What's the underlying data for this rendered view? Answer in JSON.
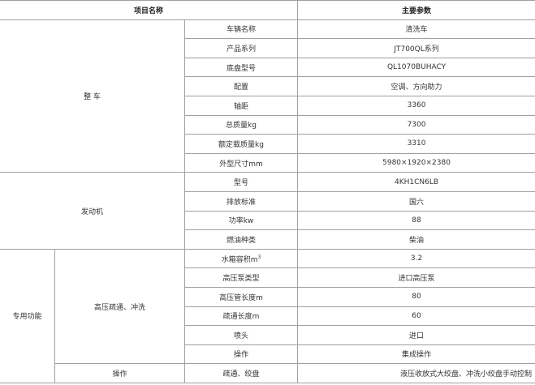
{
  "header": {
    "item_name": "项目名称",
    "main_params": "主要参数"
  },
  "groups": {
    "vehicle": "整 车",
    "engine": "发动机",
    "special": "专用功能",
    "dredge": "高压疏通、冲洗",
    "operation": "操作"
  },
  "rows": [
    {
      "label": "车辆名称",
      "value": "清洗车"
    },
    {
      "label": "产品系列",
      "value": "JT700QL系列"
    },
    {
      "label": "底盘型号",
      "value": "QL1070BUHACY"
    },
    {
      "label": "配置",
      "value": "空调、方向助力"
    },
    {
      "label": "轴距",
      "value": "3360"
    },
    {
      "label": "总质量kg",
      "value": "7300"
    },
    {
      "label": "额定载质量kg",
      "value": "3310"
    },
    {
      "label": "外型尺寸mm",
      "value": "5980×1920×2380"
    },
    {
      "label": "型号",
      "value": "4KH1CN6LB"
    },
    {
      "label": "排放标准",
      "value": "国六"
    },
    {
      "label": "功率kw",
      "value": "88"
    },
    {
      "label": "燃油种类",
      "value": "柴油"
    },
    {
      "label": "水箱容积m",
      "sup": "3",
      "value": "3.2"
    },
    {
      "label": "高压泵类型",
      "value": "进口高压泵"
    },
    {
      "label": "高压管长度m",
      "value": "80"
    },
    {
      "label": "疏通长度m",
      "value": "60"
    },
    {
      "label": "喷头",
      "value": "进口"
    },
    {
      "label": "操作",
      "value": "集成操作"
    },
    {
      "label": "疏通、绞盘",
      "value": "液压收放式大绞盘、冲洗小绞盘手动控制"
    }
  ]
}
